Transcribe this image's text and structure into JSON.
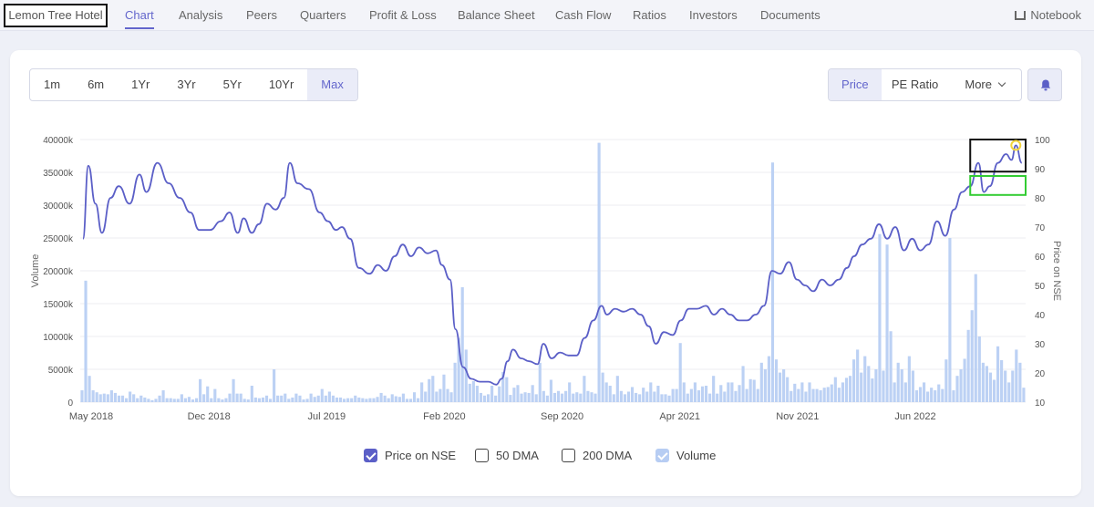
{
  "nav": {
    "company": "Lemon Tree Hotel",
    "items": [
      "Chart",
      "Analysis",
      "Peers",
      "Quarters",
      "Profit & Loss",
      "Balance Sheet",
      "Cash Flow",
      "Ratios",
      "Investors",
      "Documents"
    ],
    "active": "Chart",
    "notebook": "Notebook"
  },
  "ranges": [
    "1m",
    "6m",
    "1Yr",
    "3Yr",
    "5Yr",
    "10Yr",
    "Max"
  ],
  "active_range": "Max",
  "metrics": {
    "price": "Price",
    "pe": "PE Ratio",
    "more": "More"
  },
  "legend": {
    "price": "Price on NSE",
    "dma50": "50 DMA",
    "dma200": "200 DMA",
    "volume": "Volume"
  },
  "colors": {
    "accent": "#6366cc",
    "price_line": "#5b5fc7",
    "volume_bar": "#bcd1f4",
    "annotation_black": "#111111",
    "annotation_green": "#33cc33",
    "annotation_yellow": "#f2d43a"
  },
  "chart_data": {
    "type": "line",
    "x_tick_labels": [
      "May 2018",
      "Dec 2018",
      "Jul 2019",
      "Feb 2020",
      "Sep 2020",
      "Apr 2021",
      "Nov 2021",
      "Jun 2022"
    ],
    "ylabel_left": "Volume",
    "ylabel_right": "Price on NSE",
    "y_left_ticks": [
      "0",
      "5000k",
      "10000k",
      "15000k",
      "20000k",
      "25000k",
      "30000k",
      "35000k",
      "40000k"
    ],
    "y_right_ticks": [
      "10",
      "20",
      "30",
      "40",
      "50",
      "60",
      "70",
      "80",
      "90",
      "100"
    ],
    "ylim_left": [
      0,
      40000000
    ],
    "ylim_right": [
      10,
      100
    ],
    "grid": true,
    "legend_position": "bottom",
    "series": [
      {
        "name": "Price on NSE",
        "type": "line",
        "points": [
          [
            "2018-04-15",
            66
          ],
          [
            "2018-04-25",
            91
          ],
          [
            "2018-05-08",
            78
          ],
          [
            "2018-05-20",
            68
          ],
          [
            "2018-06-05",
            80
          ],
          [
            "2018-06-20",
            84
          ],
          [
            "2018-07-10",
            78
          ],
          [
            "2018-07-28",
            88
          ],
          [
            "2018-08-10",
            82
          ],
          [
            "2018-08-30",
            92
          ],
          [
            "2018-09-20",
            85
          ],
          [
            "2018-10-10",
            80
          ],
          [
            "2018-10-30",
            75
          ],
          [
            "2018-11-15",
            69
          ],
          [
            "2018-12-05",
            69
          ],
          [
            "2018-12-25",
            72
          ],
          [
            "2019-01-10",
            75
          ],
          [
            "2019-01-25",
            68
          ],
          [
            "2019-02-05",
            73
          ],
          [
            "2019-02-20",
            68
          ],
          [
            "2019-03-05",
            71
          ],
          [
            "2019-03-20",
            78
          ],
          [
            "2019-04-05",
            76
          ],
          [
            "2019-04-20",
            80
          ],
          [
            "2019-05-01",
            92
          ],
          [
            "2019-05-15",
            85
          ],
          [
            "2019-06-05",
            83
          ],
          [
            "2019-06-25",
            75
          ],
          [
            "2019-07-10",
            72
          ],
          [
            "2019-07-25",
            69
          ],
          [
            "2019-08-05",
            70
          ],
          [
            "2019-08-20",
            66
          ],
          [
            "2019-09-05",
            56
          ],
          [
            "2019-09-25",
            54
          ],
          [
            "2019-10-10",
            57
          ],
          [
            "2019-10-25",
            55
          ],
          [
            "2019-11-10",
            60
          ],
          [
            "2019-11-25",
            64
          ],
          [
            "2019-12-10",
            60
          ],
          [
            "2019-12-25",
            63
          ],
          [
            "2020-01-10",
            61
          ],
          [
            "2020-01-25",
            62
          ],
          [
            "2020-02-05",
            57
          ],
          [
            "2020-02-20",
            52
          ],
          [
            "2020-03-01",
            35
          ],
          [
            "2020-03-15",
            22
          ],
          [
            "2020-03-30",
            18
          ],
          [
            "2020-04-15",
            17
          ],
          [
            "2020-05-01",
            17
          ],
          [
            "2020-05-15",
            16
          ],
          [
            "2020-05-25",
            18
          ],
          [
            "2020-06-05",
            24
          ],
          [
            "2020-06-15",
            28
          ],
          [
            "2020-06-30",
            25
          ],
          [
            "2020-07-15",
            24
          ],
          [
            "2020-07-30",
            23
          ],
          [
            "2020-08-10",
            30
          ],
          [
            "2020-08-25",
            25
          ],
          [
            "2020-09-10",
            27
          ],
          [
            "2020-09-25",
            26
          ],
          [
            "2020-10-10",
            26
          ],
          [
            "2020-10-25",
            32
          ],
          [
            "2020-11-10",
            38
          ],
          [
            "2020-11-25",
            43
          ],
          [
            "2020-12-05",
            40
          ],
          [
            "2020-12-20",
            42
          ],
          [
            "2021-01-05",
            41
          ],
          [
            "2021-01-20",
            42
          ],
          [
            "2021-02-05",
            40
          ],
          [
            "2021-02-20",
            36
          ],
          [
            "2021-03-05",
            30
          ],
          [
            "2021-03-20",
            34
          ],
          [
            "2021-04-05",
            33
          ],
          [
            "2021-04-20",
            38
          ],
          [
            "2021-05-05",
            42
          ],
          [
            "2021-05-20",
            42
          ],
          [
            "2021-06-05",
            43
          ],
          [
            "2021-06-20",
            40
          ],
          [
            "2021-07-05",
            42
          ],
          [
            "2021-07-20",
            40
          ],
          [
            "2021-08-05",
            38
          ],
          [
            "2021-08-20",
            38
          ],
          [
            "2021-09-05",
            40
          ],
          [
            "2021-09-20",
            43
          ],
          [
            "2021-10-05",
            55
          ],
          [
            "2021-10-20",
            54
          ],
          [
            "2021-11-05",
            58
          ],
          [
            "2021-11-20",
            52
          ],
          [
            "2021-12-05",
            50
          ],
          [
            "2021-12-20",
            48
          ],
          [
            "2022-01-05",
            52
          ],
          [
            "2022-01-20",
            50
          ],
          [
            "2022-02-05",
            52
          ],
          [
            "2022-02-20",
            56
          ],
          [
            "2022-03-05",
            60
          ],
          [
            "2022-03-20",
            64
          ],
          [
            "2022-04-05",
            66
          ],
          [
            "2022-04-20",
            71
          ],
          [
            "2022-05-05",
            66
          ],
          [
            "2022-05-20",
            70
          ],
          [
            "2022-06-05",
            62
          ],
          [
            "2022-06-20",
            66
          ],
          [
            "2022-07-05",
            62
          ],
          [
            "2022-07-20",
            64
          ],
          [
            "2022-08-05",
            72
          ],
          [
            "2022-08-20",
            67
          ],
          [
            "2022-09-05",
            76
          ],
          [
            "2022-09-20",
            82
          ],
          [
            "2022-10-05",
            84
          ],
          [
            "2022-10-20",
            92
          ],
          [
            "2022-10-30",
            82
          ],
          [
            "2022-11-10",
            84
          ],
          [
            "2022-11-25",
            92
          ],
          [
            "2022-12-10",
            95
          ],
          [
            "2022-12-20",
            93
          ],
          [
            "2022-12-28",
            98
          ],
          [
            "2023-01-08",
            92
          ]
        ]
      },
      {
        "name": "Volume",
        "type": "bar",
        "x_range": [
          "2018-04-10",
          "2023-01-15"
        ],
        "values": [
          1800000,
          18500000,
          4000000,
          1800000,
          1500000,
          1200000,
          1300000,
          1200000,
          1800000,
          1400000,
          1000000,
          1000000,
          600000,
          1600000,
          1200000,
          600000,
          1000000,
          700000,
          500000,
          300000,
          500000,
          1000000,
          1800000,
          600000,
          600000,
          500000,
          500000,
          1200000,
          600000,
          800000,
          400000,
          600000,
          3500000,
          1200000,
          2400000,
          600000,
          2000000,
          600000,
          400000,
          600000,
          1300000,
          3500000,
          1300000,
          1300000,
          500000,
          400000,
          2500000,
          700000,
          600000,
          700000,
          1000000,
          500000,
          5000000,
          1000000,
          1000000,
          1300000,
          500000,
          700000,
          1300000,
          1000000,
          400000,
          500000,
          1300000,
          800000,
          1000000,
          2000000,
          1000000,
          1600000,
          1000000,
          700000,
          700000,
          500000,
          600000,
          600000,
          1000000,
          700000,
          600000,
          500000,
          600000,
          600000,
          800000,
          1400000,
          1000000,
          600000,
          1200000,
          900000,
          800000,
          1300000,
          500000,
          500000,
          1500000,
          600000,
          3000000,
          1600000,
          3500000,
          4000000,
          1600000,
          2000000,
          4200000,
          2000000,
          1500000,
          6000000,
          9800000,
          17500000,
          8000000,
          2800000,
          3200000,
          2500000,
          1400000,
          1000000,
          1200000,
          2500000,
          1000000,
          2400000,
          4600000,
          3800000,
          1100000,
          2200000,
          2600000,
          1300000,
          1500000,
          1400000,
          2600000,
          1200000,
          6000000,
          1700000,
          1000000,
          3400000,
          1400000,
          1700000,
          1300000,
          1700000,
          3000000,
          1300000,
          1500000,
          1300000,
          4000000,
          1700000,
          1500000,
          1300000,
          39500000,
          4500000,
          3000000,
          2500000,
          1200000,
          4000000,
          1700000,
          1200000,
          1600000,
          2300000,
          1400000,
          1200000,
          2200000,
          1600000,
          3000000,
          1600000,
          2500000,
          1200000,
          1200000,
          1000000,
          2000000,
          2000000,
          9000000,
          3000000,
          1300000,
          2000000,
          3000000,
          1800000,
          2400000,
          2500000,
          1300000,
          4000000,
          1300000,
          2600000,
          1600000,
          3000000,
          3000000,
          1700000,
          2600000,
          5500000,
          2000000,
          3500000,
          3400000,
          2000000,
          6000000,
          5000000,
          7000000,
          36500000,
          6500000,
          4500000,
          5000000,
          3800000,
          1700000,
          2800000,
          2000000,
          3000000,
          1600000,
          3000000,
          2000000,
          2000000,
          1800000,
          2200000,
          2300000,
          2700000,
          3800000,
          2200000,
          3000000,
          3700000,
          4000000,
          6500000,
          8000000,
          4500000,
          7000000,
          5500000,
          3600000,
          5000000,
          25600000,
          4800000,
          24000000,
          10800000,
          3000000,
          6000000,
          5000000,
          3000000,
          7000000,
          4800000,
          1800000,
          2300000,
          3000000,
          1600000,
          2200000,
          1800000,
          2700000,
          2000000,
          6500000,
          25000000,
          1800000,
          4000000,
          5000000,
          6600000,
          11000000,
          14000000,
          19500000,
          10000000,
          6000000,
          5500000,
          4500000,
          3400000,
          8500000,
          6400000,
          4800000,
          3000000,
          4800000,
          8000000,
          6000000,
          2200000
        ]
      }
    ],
    "annotations": [
      {
        "shape": "rectangle",
        "color": "black",
        "x_range": [
          "2022-10-05",
          "2023-01-15"
        ],
        "y_range": [
          89,
          100
        ]
      },
      {
        "shape": "rectangle",
        "color": "green",
        "x_range": [
          "2022-10-05",
          "2023-01-15"
        ],
        "y_range": [
          81,
          87.5
        ]
      },
      {
        "shape": "circle",
        "color": "yellow",
        "x": "2022-12-28",
        "y": 98
      }
    ]
  }
}
